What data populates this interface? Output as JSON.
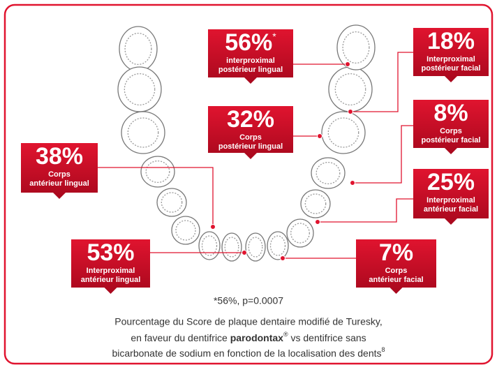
{
  "callouts": [
    {
      "value": "56%",
      "note": "*",
      "lines": [
        "interproximal",
        "postérieur lingual"
      ]
    },
    {
      "value": "18%",
      "lines": [
        "Interproximal",
        "postérieur facial"
      ]
    },
    {
      "value": "32%",
      "lines": [
        "Corps",
        "postérieur lingual"
      ]
    },
    {
      "value": "8%",
      "lines": [
        "Corps",
        "postérieur facial"
      ]
    },
    {
      "value": "38%",
      "lines": [
        "Corps",
        "antérieur lingual"
      ]
    },
    {
      "value": "25%",
      "lines": [
        "Interproximal",
        "antérieur facial"
      ]
    },
    {
      "value": "53%",
      "lines": [
        "Interproximal",
        "antérieur lingual"
      ]
    },
    {
      "value": "7%",
      "lines": [
        "Corps",
        "antérieur facial"
      ]
    }
  ],
  "footnote": "*56%, p=0.0007",
  "caption": {
    "line1": "Pourcentage du Score de plaque dentaire modifié de Turesky,",
    "line2_start": "en faveur du dentifrice ",
    "brand": "parodontax",
    "registered": "®",
    "line2_end": " vs dentifrice sans",
    "line3": "bicarbonate de sodium en fonction de la localisation des dents",
    "ref": "8"
  }
}
